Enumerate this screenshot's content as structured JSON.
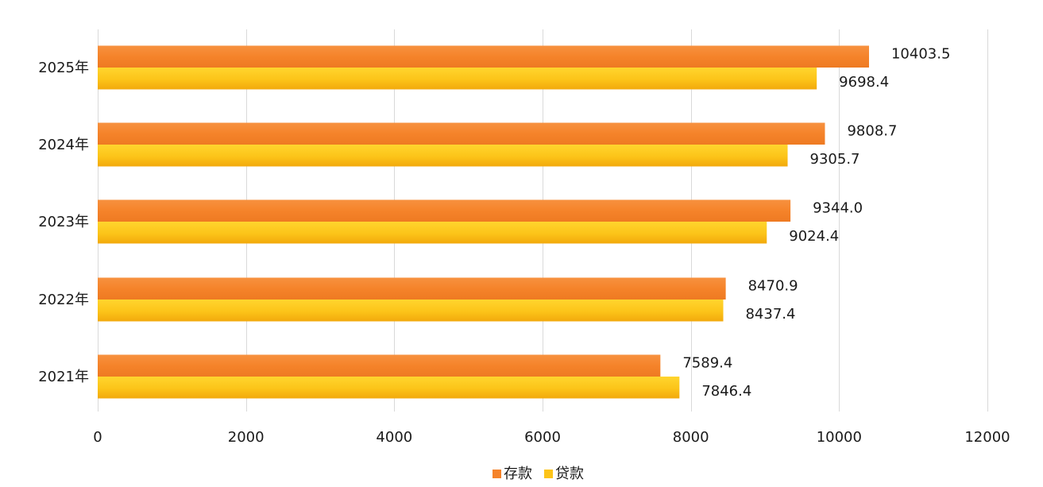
{
  "chart_data": {
    "type": "bar",
    "orientation": "horizontal",
    "categories": [
      "2025年",
      "2024年",
      "2023年",
      "2022年",
      "2021年"
    ],
    "series": [
      {
        "name": "存款",
        "color": "#f5832a",
        "values": [
          10403.5,
          9808.7,
          9344.0,
          8470.9,
          7589.4
        ]
      },
      {
        "name": "贷款",
        "color": "#fcc419",
        "values": [
          9698.4,
          9305.7,
          9024.4,
          8437.4,
          7846.4
        ]
      }
    ],
    "data_labels": [
      [
        "10403.5",
        "9808.7",
        "9344.0",
        "8470.9",
        "7589.4"
      ],
      [
        "9698.4",
        "9305.7",
        "9024.4",
        "8437.4",
        "7846.4"
      ]
    ],
    "xlim": [
      0,
      12000
    ],
    "xticks": [
      0,
      2000,
      4000,
      6000,
      8000,
      10000,
      12000
    ],
    "xtick_labels": [
      "0",
      "2000",
      "4000",
      "6000",
      "8000",
      "10000",
      "12000"
    ],
    "grid": true,
    "legend": "bottom-center",
    "title": "",
    "xlabel": "",
    "ylabel": ""
  }
}
